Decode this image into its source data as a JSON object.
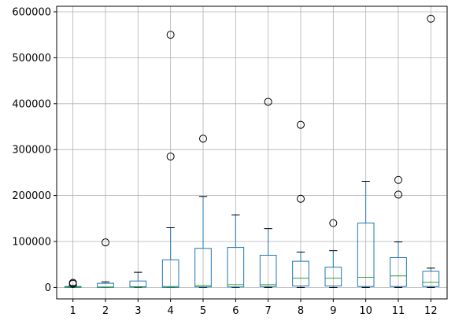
{
  "chart_data": {
    "type": "boxplot",
    "title": "",
    "xlabel": "",
    "ylabel": "",
    "grid": true,
    "ylim": [
      -25000,
      612000
    ],
    "x_ticks": [
      "1",
      "2",
      "3",
      "4",
      "5",
      "6",
      "7",
      "8",
      "9",
      "10",
      "11",
      "12"
    ],
    "y_ticks": [
      {
        "value": 0,
        "label": "0"
      },
      {
        "value": 100000,
        "label": "100000"
      },
      {
        "value": 200000,
        "label": "200000"
      },
      {
        "value": 300000,
        "label": "300000"
      },
      {
        "value": 400000,
        "label": "400000"
      },
      {
        "value": 500000,
        "label": "500000"
      },
      {
        "value": 600000,
        "label": "600000"
      }
    ],
    "boxes": [
      {
        "label": "1",
        "whisker_low": 0,
        "q1": 0,
        "median": 500,
        "q3": 2000,
        "whisker_high": 4000,
        "outliers": [
          8000,
          10000
        ]
      },
      {
        "label": "2",
        "whisker_low": 0,
        "q1": 0,
        "median": 1000,
        "q3": 9000,
        "whisker_high": 12000,
        "outliers": [
          98000
        ]
      },
      {
        "label": "3",
        "whisker_low": 0,
        "q1": 500,
        "median": 1500,
        "q3": 14000,
        "whisker_high": 33000,
        "outliers": []
      },
      {
        "label": "4",
        "whisker_low": 0,
        "q1": 0,
        "median": 2000,
        "q3": 60000,
        "whisker_high": 130000,
        "outliers": [
          285000,
          550000
        ]
      },
      {
        "label": "5",
        "whisker_low": 0,
        "q1": 1000,
        "median": 4000,
        "q3": 85000,
        "whisker_high": 198000,
        "outliers": [
          324000
        ]
      },
      {
        "label": "6",
        "whisker_low": 0,
        "q1": 1000,
        "median": 6000,
        "q3": 87000,
        "whisker_high": 158000,
        "outliers": []
      },
      {
        "label": "7",
        "whisker_low": 0,
        "q1": 2000,
        "median": 6000,
        "q3": 70000,
        "whisker_high": 128000,
        "outliers": [
          404000
        ]
      },
      {
        "label": "8",
        "whisker_low": 0,
        "q1": 3000,
        "median": 20000,
        "q3": 57000,
        "whisker_high": 77000,
        "outliers": [
          193000,
          354000
        ]
      },
      {
        "label": "9",
        "whisker_low": 0,
        "q1": 3000,
        "median": 20000,
        "q3": 44000,
        "whisker_high": 80000,
        "outliers": [
          140000
        ]
      },
      {
        "label": "10",
        "whisker_low": 0,
        "q1": 2000,
        "median": 22000,
        "q3": 140000,
        "whisker_high": 231000,
        "outliers": []
      },
      {
        "label": "11",
        "whisker_low": 0,
        "q1": 2000,
        "median": 25000,
        "q3": 65000,
        "whisker_high": 99000,
        "outliers": [
          202000,
          234000
        ]
      },
      {
        "label": "12",
        "whisker_low": 0,
        "q1": 2000,
        "median": 11000,
        "q3": 35000,
        "whisker_high": 42000,
        "outliers": [
          585000
        ]
      }
    ],
    "colors": {
      "box": "#1f77b4",
      "median": "#2ca02c",
      "whisker": "#1f77b4",
      "cap": "#000000",
      "outlier": "#000000",
      "grid": "#b0b0b0",
      "axis": "#000000"
    }
  }
}
